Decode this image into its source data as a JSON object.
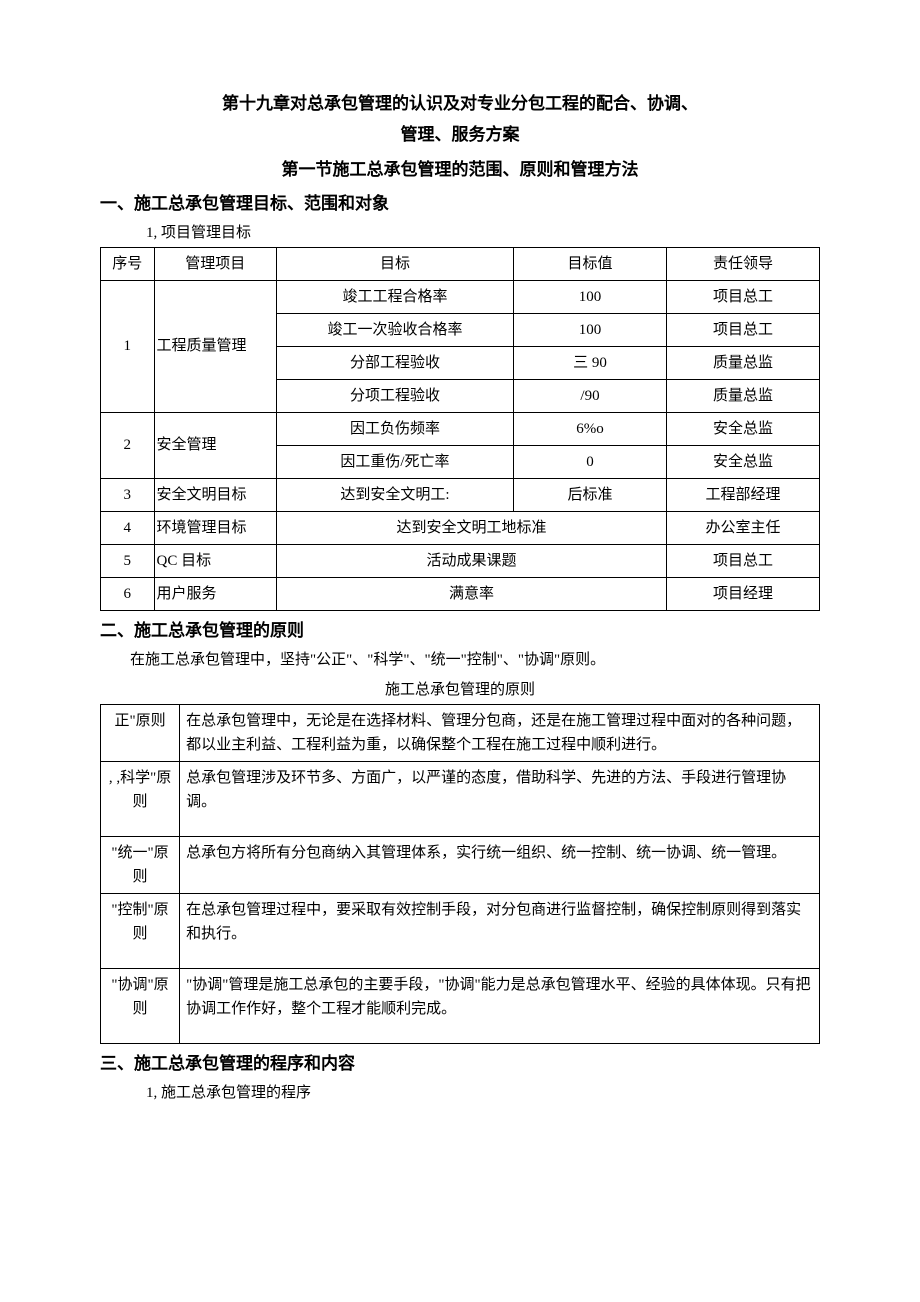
{
  "title": {
    "line1": "第十九章对总承包管理的认识及对专业分包工程的配合、协调、",
    "line2": "管理、服务方案"
  },
  "section1": "第一节施工总承包管理的范围、原则和管理方法",
  "h1_1": "一、施工总承包管理目标、范围和对象",
  "list1": "1, 项目管理目标",
  "goals_table": {
    "headers": [
      "序号",
      "管理项目",
      "目标",
      "目标值",
      "责任领导"
    ],
    "rows": [
      {
        "seq": "1",
        "item": "工程质量管理",
        "sub": [
          {
            "goal": "竣工工程合格率",
            "val": "100",
            "resp": "项目总工"
          },
          {
            "goal": "竣工一次验收合格率",
            "val": "100",
            "resp": "项目总工"
          },
          {
            "goal": "分部工程验收",
            "val": "三 90",
            "resp": "质量总监"
          },
          {
            "goal": "分项工程验收",
            "val": "/90",
            "resp": "质量总监"
          }
        ]
      },
      {
        "seq": "2",
        "item": "安全管理",
        "sub": [
          {
            "goal": "因工负伤频率",
            "val": "6%o",
            "resp": "安全总监"
          },
          {
            "goal": "因工重伤/死亡率",
            "val": "0",
            "resp": "安全总监"
          }
        ]
      },
      {
        "seq": "3",
        "item": "安全文明目标",
        "goal": "达到安全文明工:",
        "val": "后标准",
        "resp": "工程部经理"
      },
      {
        "seq": "4",
        "item": "环境管理目标",
        "goal_merged": "达到安全文明工地标准",
        "resp": "办公室主任"
      },
      {
        "seq": "5",
        "item": "QC 目标",
        "goal_merged": "活动成果课题",
        "resp": "项目总工"
      },
      {
        "seq": "6",
        "item": "用户服务",
        "goal_merged": "满意率",
        "resp": "项目经理"
      }
    ]
  },
  "h1_2": "二、施工总承包管理的原则",
  "p1": "在施工总承包管理中，坚持\"公正\"、\"科学\"、\"统一\"控制\"、\"协调\"原则。",
  "table2_caption": "施工总承包管理的原则",
  "principles": [
    {
      "label": "正\"原则",
      "desc": "在总承包管理中，无论是在选择材料、管理分包商，还是在施工管理过程中面对的各种问题，都以业主利益、工程利益为重，以确保整个工程在施工过程中顺利进行。"
    },
    {
      "label": ", ,科学\"原则",
      "desc": "总承包管理涉及环节多、方面广，以严谨的态度，借助科学、先进的方法、手段进行管理协调。"
    },
    {
      "label": "\"统一\"原则",
      "desc": "总承包方将所有分包商纳入其管理体系，实行统一组织、统一控制、统一协调、统一管理。"
    },
    {
      "label": "\"控制\"原则",
      "desc": "在总承包管理过程中，要采取有效控制手段，对分包商进行监督控制，确保控制原则得到落实和执行。"
    },
    {
      "label": "\"协调\"原则",
      "desc": "\"协调\"管理是施工总承包的主要手段，\"协调\"能力是总承包管理水平、经验的具体体现。只有把协调工作作好，整个工程才能顺利完成。"
    }
  ],
  "h1_3": "三、施工总承包管理的程序和内容",
  "list2": "1, 施工总承包管理的程序"
}
